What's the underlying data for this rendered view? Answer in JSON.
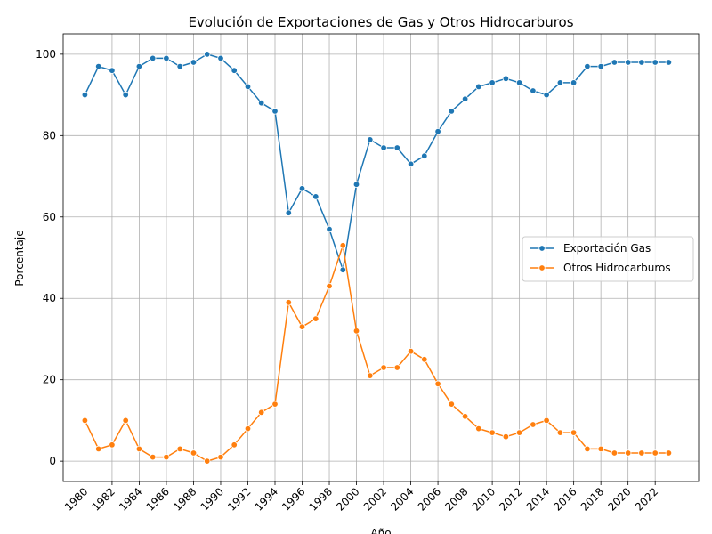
{
  "chart_data": {
    "type": "line",
    "title": "Evolución de Exportaciones de Gas y Otros Hidrocarburos",
    "xlabel": "Año",
    "ylabel": "Porcentaje",
    "x": [
      1980,
      1981,
      1982,
      1983,
      1984,
      1985,
      1986,
      1987,
      1988,
      1989,
      1990,
      1991,
      1992,
      1993,
      1994,
      1995,
      1996,
      1997,
      1998,
      1999,
      2000,
      2001,
      2002,
      2003,
      2004,
      2005,
      2006,
      2007,
      2008,
      2009,
      2010,
      2011,
      2012,
      2013,
      2014,
      2015,
      2016,
      2017,
      2018,
      2019,
      2020,
      2021,
      2022,
      2023
    ],
    "xticks": [
      "1980",
      "1982",
      "1984",
      "1986",
      "1988",
      "1990",
      "1992",
      "1994",
      "1996",
      "1998",
      "2000",
      "2002",
      "2004",
      "2006",
      "2008",
      "2010",
      "2012",
      "2014",
      "2016",
      "2018",
      "2020",
      "2022"
    ],
    "yticks": [
      "0",
      "20",
      "40",
      "60",
      "80",
      "100"
    ],
    "xlim": [
      1978.4,
      2025.2
    ],
    "ylim": [
      -5,
      105
    ],
    "grid": true,
    "legend_position": "center-right",
    "series": [
      {
        "name": "Exportación Gas",
        "color": "#1f77b4",
        "values": [
          90,
          97,
          96,
          90,
          97,
          99,
          99,
          97,
          98,
          100,
          99,
          96,
          92,
          88,
          86,
          61,
          67,
          65,
          57,
          47,
          68,
          79,
          77,
          77,
          73,
          75,
          81,
          86,
          89,
          92,
          93,
          94,
          93,
          91,
          90,
          93,
          93,
          97,
          97,
          98,
          98,
          98,
          98,
          98
        ]
      },
      {
        "name": "Otros Hidrocarburos",
        "color": "#ff7f0e",
        "values": [
          10,
          3,
          4,
          10,
          3,
          1,
          1,
          3,
          2,
          0,
          1,
          4,
          8,
          12,
          14,
          39,
          33,
          35,
          43,
          53,
          32,
          21,
          23,
          23,
          27,
          25,
          19,
          14,
          11,
          8,
          7,
          6,
          7,
          9,
          10,
          7,
          7,
          3,
          3,
          2,
          2,
          2,
          2,
          2
        ]
      }
    ]
  }
}
